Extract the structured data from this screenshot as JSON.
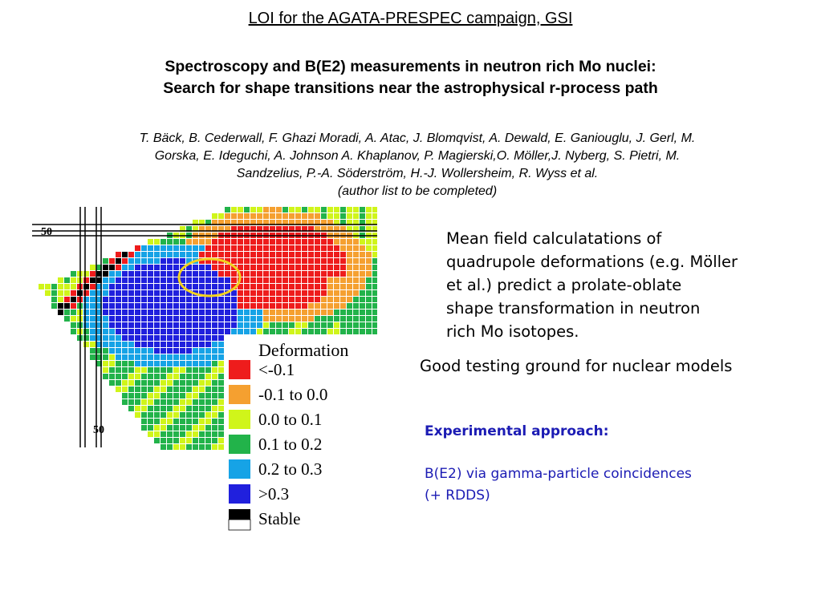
{
  "header": {
    "title": "LOI for the AGATA-PRESPEC campaign, GSI",
    "subtitle_lines": [
      "Spectroscopy and B(E2) measurements in neutron rich Mo nuclei:",
      "Search for shape transitions near the astrophysical r-process path"
    ],
    "author_lines": [
      "T. Bäck, B. Cederwall, F. Ghazi Moradi, A. Atac, J. Blomqvist, A. Dewald, E. Ganiouglu, J. Gerl, M.",
      "Gorska, E. Ideguchi, A. Johnson A. Khaplanov, P. Magierski,O. Möller,J. Nyberg, S. Pietri, M.",
      "Sandzelius, P.-A. Söderström, H.-J. Wollersheim, R. Wyss et al.",
      "(author list to be completed)"
    ]
  },
  "figure": {
    "magic_label_top": "50",
    "magic_label_bottom": "50",
    "legend_title": "Deformation",
    "legend": [
      {
        "label": "<-0.1",
        "color": "#ee1c1c"
      },
      {
        "label": "-0.1 to 0.0",
        "color": "#f5a030"
      },
      {
        "label": "0.0 to 0.1",
        "color": "#d0f51a"
      },
      {
        "label": "0.1 to 0.2",
        "color": "#22b34a"
      },
      {
        "label": "0.2 to 0.3",
        "color": "#16a3e6"
      },
      {
        "label": ">0.3",
        "color": "#2020dd"
      },
      {
        "label": "Stable",
        "color": "#000000"
      }
    ]
  },
  "text": {
    "mean_field_lines": [
      "Mean field calculatations of",
      "quadrupole deformations (e.g. Möller",
      "et al.) predict a prolate-oblate",
      "shape transformation in neutron",
      "rich Mo isotopes."
    ],
    "good_testing": "Good testing ground for nuclear models",
    "experimental_title": "Experimental approach:",
    "experimental_lines": [
      "B(E2) via gamma-particle coincidences",
      "(+ RDDS)"
    ]
  },
  "colors": {
    "experimental_text": "#1c1cb4",
    "ellipse": "#f2d21e"
  }
}
